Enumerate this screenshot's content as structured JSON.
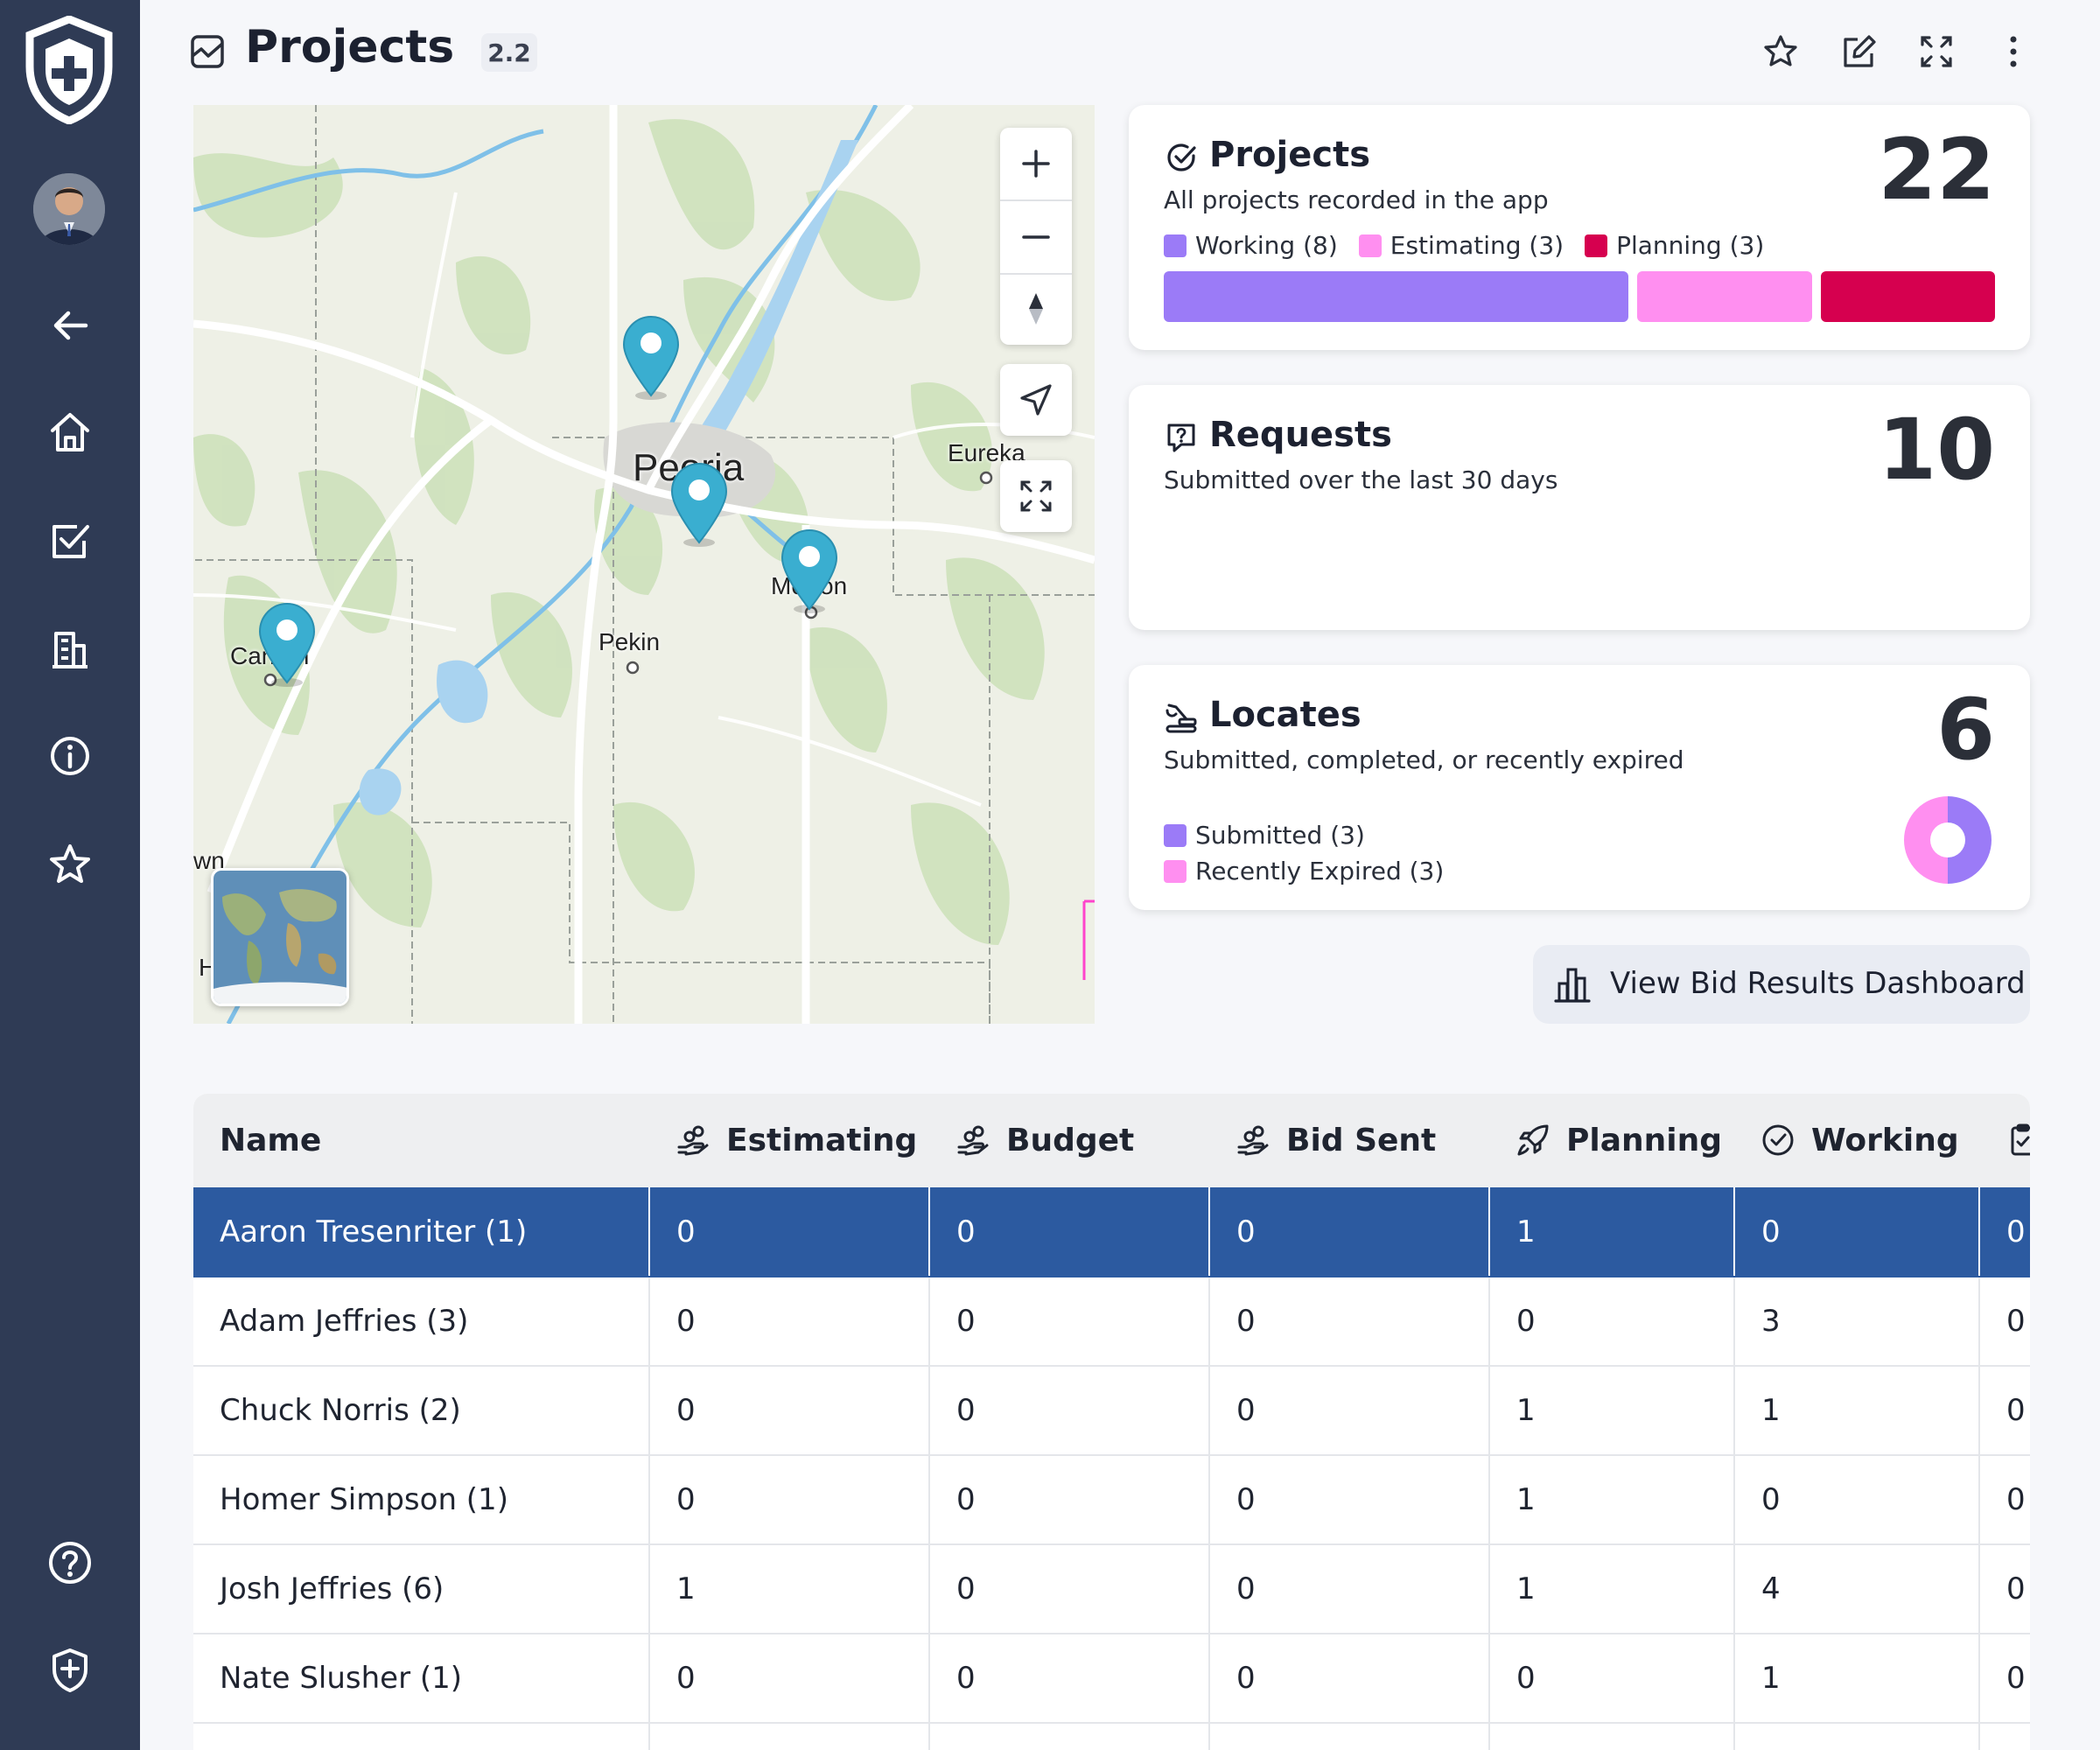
{
  "header": {
    "title": "Projects",
    "version": "2.2"
  },
  "map": {
    "labels": {
      "peoria": "Peoria",
      "eureka": "Eureka",
      "morton": "Morton",
      "pekin": "Pekin",
      "canton": "Canton",
      "havana": "Havana",
      "wn": "wn"
    },
    "marker_count": 4
  },
  "cards": {
    "projects": {
      "title": "Projects",
      "subtitle": "All projects recorded in the app",
      "count": "22",
      "legend": [
        {
          "label": "Working (8)",
          "color": "#9b7bf7",
          "value": 8
        },
        {
          "label": "Estimating (3)",
          "color": "#ff8ff0",
          "value": 3
        },
        {
          "label": "Planning (3)",
          "color": "#d6004f",
          "value": 3
        }
      ]
    },
    "requests": {
      "title": "Requests",
      "subtitle": "Submitted over the last 30 days",
      "count": "10"
    },
    "locates": {
      "title": "Locates",
      "subtitle": "Submitted, completed, or recently expired",
      "count": "6",
      "legend": [
        {
          "label": "Submitted (3)",
          "color": "#9b7bf7",
          "value": 3
        },
        {
          "label": "Recently Expired (3)",
          "color": "#ff8ff0",
          "value": 3
        }
      ]
    }
  },
  "bid_button": {
    "label": "View Bid Results Dashboard"
  },
  "table": {
    "columns": [
      "Name",
      "Estimating",
      "Budget",
      "Bid Sent",
      "Planning",
      "Working",
      ""
    ],
    "rows": [
      {
        "name": "Aaron Tresenriter (1)",
        "cells": [
          "0",
          "0",
          "0",
          "1",
          "0",
          "0"
        ],
        "selected": true
      },
      {
        "name": "Adam Jeffries (3)",
        "cells": [
          "0",
          "0",
          "0",
          "0",
          "3",
          "0"
        ],
        "selected": false
      },
      {
        "name": "Chuck Norris (2)",
        "cells": [
          "0",
          "0",
          "0",
          "1",
          "1",
          "0"
        ],
        "selected": false
      },
      {
        "name": "Homer Simpson (1)",
        "cells": [
          "0",
          "0",
          "0",
          "1",
          "0",
          "0"
        ],
        "selected": false
      },
      {
        "name": "Josh Jeffries (6)",
        "cells": [
          "1",
          "0",
          "0",
          "1",
          "4",
          "0"
        ],
        "selected": false
      },
      {
        "name": "Nate Slusher (1)",
        "cells": [
          "0",
          "0",
          "0",
          "0",
          "1",
          "0"
        ],
        "selected": false
      },
      {
        "name": "",
        "cells": [
          "",
          "",
          "",
          "",
          "",
          ""
        ],
        "selected": false
      }
    ]
  },
  "colors": {
    "sidebar": "#2f3b55",
    "selected_row": "#2c5aa0",
    "marker": "#3aaed0"
  }
}
